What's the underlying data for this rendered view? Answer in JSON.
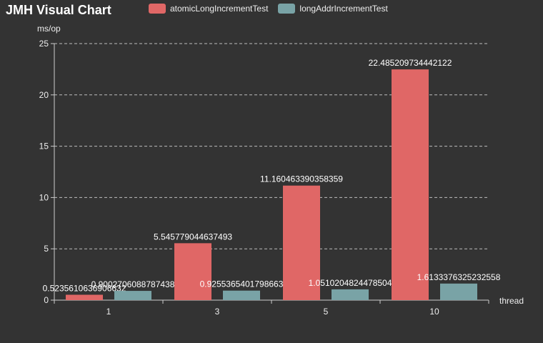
{
  "chart_data": {
    "type": "bar",
    "title": "JMH Visual Chart",
    "xlabel": "thread",
    "ylabel": "ms/op",
    "ylim": [
      0,
      25
    ],
    "yticks": [
      0,
      5,
      10,
      15,
      20,
      25
    ],
    "grid": true,
    "legend_position": "top",
    "categories": [
      "1",
      "3",
      "5",
      "10"
    ],
    "series": [
      {
        "name": "atomicLongIncrementTest",
        "color": "#e06766",
        "values": [
          0.5235610636906632,
          5.545779044637493,
          11.160463390358359,
          22.485209734442122
        ],
        "labels": [
          "0.5235610636906632",
          "5.545779044637493",
          "11.160463390358359",
          "22.485209734442122"
        ]
      },
      {
        "name": "longAddrIncrementTest",
        "color": "#79a3a6",
        "values": [
          0.9002706088787438,
          0.9255365401798663,
          1.0510204824478504,
          1.6133376325232558
        ],
        "labels": [
          "0.9002706088787438",
          "0.9255365401798663",
          "1.0510204824478504",
          "1.6133376325232558"
        ]
      }
    ]
  }
}
